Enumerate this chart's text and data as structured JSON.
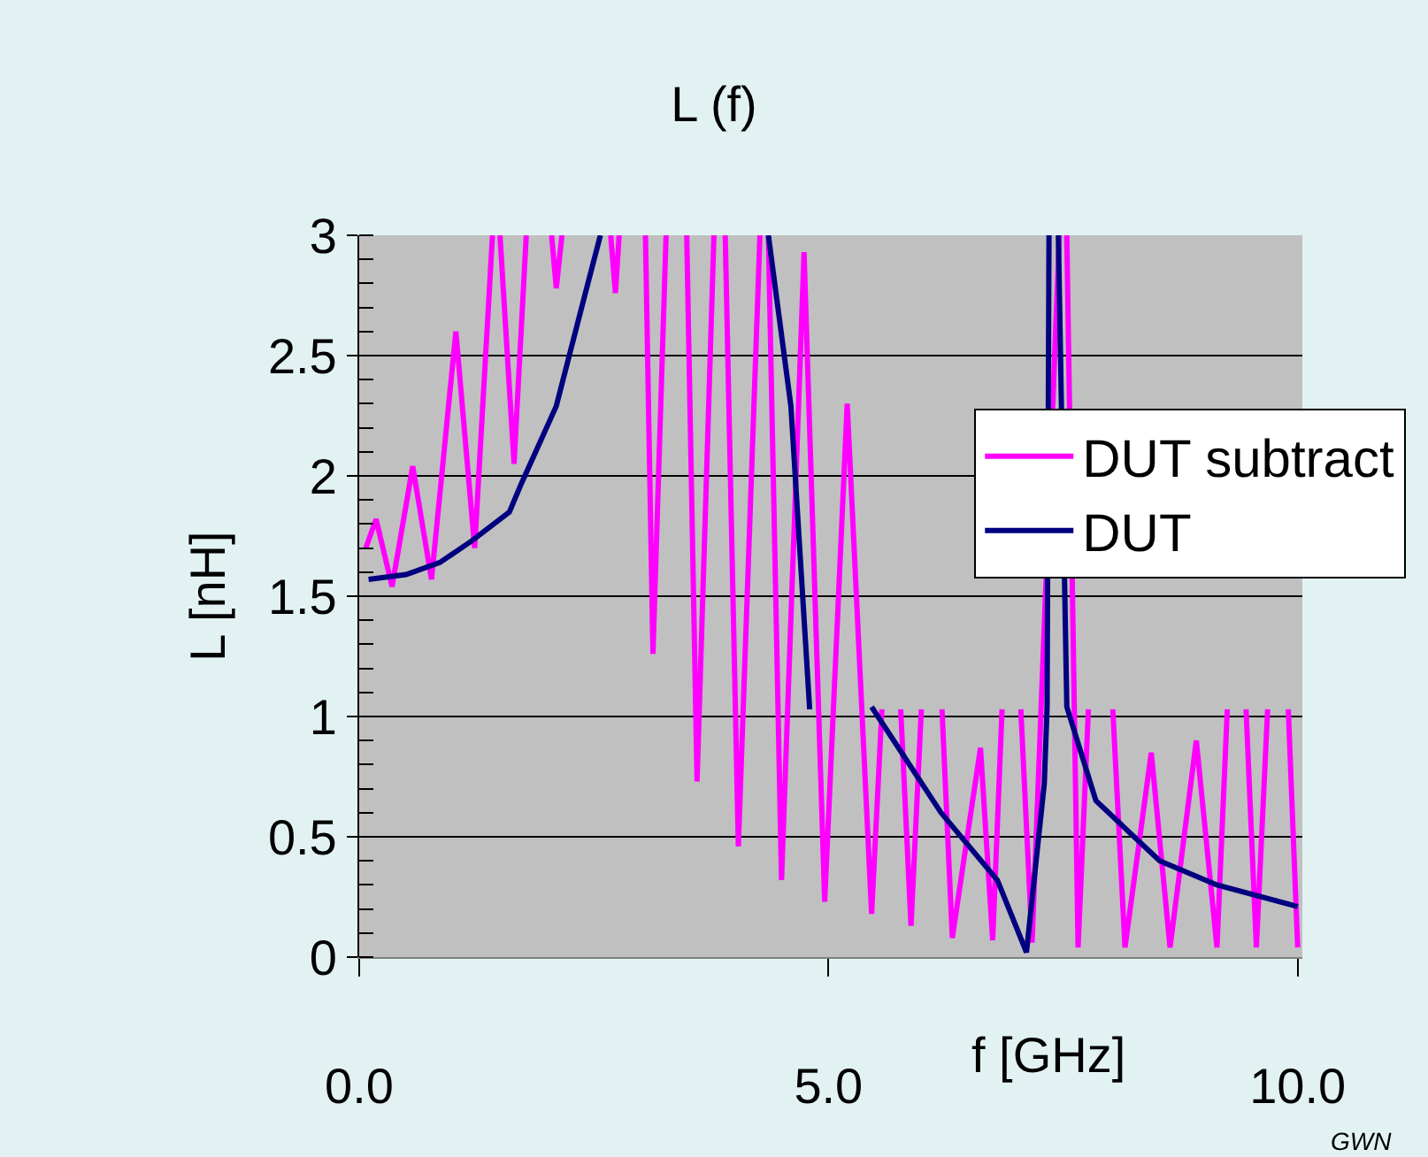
{
  "chart_data": {
    "type": "line",
    "title": "L (f)",
    "xlabel": "f [GHz]",
    "ylabel": "L [nH]",
    "xlim": [
      0,
      10.05
    ],
    "xticks": [
      {
        "value": 0,
        "label": "0.0"
      },
      {
        "value": 5,
        "label": "5.0"
      },
      {
        "value": 10,
        "label": "10.0"
      }
    ],
    "ylim": [
      0,
      3
    ],
    "yticks": [
      0,
      0.5,
      1,
      1.5,
      2,
      2.5,
      3
    ],
    "grid": "y",
    "legend": "right",
    "marker": "none",
    "line_style": "solid",
    "annotations": [
      "GWN"
    ],
    "series": [
      {
        "name": "DUT subtract",
        "color": "#ff00ff",
        "x": [
          0.07,
          0.18,
          0.35,
          0.57,
          0.77,
          1.03,
          1.23,
          1.42,
          1.46,
          1.5,
          1.65,
          1.78,
          1.9,
          2.05,
          2.1,
          2.16,
          2.4,
          2.68,
          2.73,
          2.77,
          2.9,
          3.05,
          3.13,
          3.27,
          3.4,
          3.49,
          3.6,
          3.78,
          3.85,
          3.9,
          4.04,
          4.27,
          4.3,
          4.36,
          4.5,
          4.74,
          4.96,
          5.2,
          5.46,
          5.57,
          5.67,
          5.77,
          5.88,
          5.99,
          6.1,
          6.21,
          6.32,
          6.62,
          6.75,
          6.85,
          6.95,
          7.05,
          7.17,
          7.46,
          7.5,
          7.54,
          7.66,
          7.77,
          7.9,
          8.03,
          8.16,
          8.44,
          8.64,
          8.92,
          9.14,
          9.25,
          9.35,
          9.45,
          9.56,
          9.68,
          9.8,
          9.9,
          10.0
        ],
        "values": [
          1.7,
          1.82,
          1.54,
          2.04,
          1.57,
          2.6,
          1.7,
          3,
          null,
          3,
          2.05,
          3,
          null,
          3,
          2.78,
          3,
          null,
          3,
          2.76,
          3,
          null,
          3,
          1.26,
          3,
          null,
          3,
          0.73,
          3,
          null,
          3,
          0.46,
          3,
          null,
          3,
          0.32,
          2.93,
          0.23,
          2.3,
          0.18,
          1.03,
          null,
          1.03,
          0.13,
          1.03,
          null,
          1.03,
          0.08,
          0.87,
          0.07,
          1.03,
          null,
          1.03,
          0.06,
          3,
          null,
          3,
          0.04,
          1.03,
          null,
          1.03,
          0.04,
          0.85,
          0.04,
          0.9,
          0.04,
          1.03,
          null,
          1.03,
          0.04,
          1.03,
          null,
          1.03,
          0.04
        ]
      },
      {
        "name": "DUT",
        "color": "#000080",
        "x": [
          0.1,
          0.5,
          0.86,
          1.2,
          1.6,
          1.73,
          2.1,
          2.39,
          2.57,
          3.5,
          4.36,
          4.6,
          4.8,
          5.0,
          5.46,
          6.2,
          6.8,
          7.11,
          7.3,
          7.33,
          7.35,
          7.4,
          7.45,
          7.54,
          7.85,
          8.53,
          9.14,
          10.0
        ],
        "values": [
          1.57,
          1.59,
          1.64,
          1.73,
          1.85,
          1.97,
          2.29,
          2.73,
          3,
          null,
          3,
          2.29,
          1.03,
          null,
          1.04,
          0.6,
          0.32,
          0.02,
          0.72,
          1.04,
          3,
          null,
          3,
          1.04,
          0.65,
          0.4,
          0.3,
          0.21
        ]
      }
    ]
  }
}
